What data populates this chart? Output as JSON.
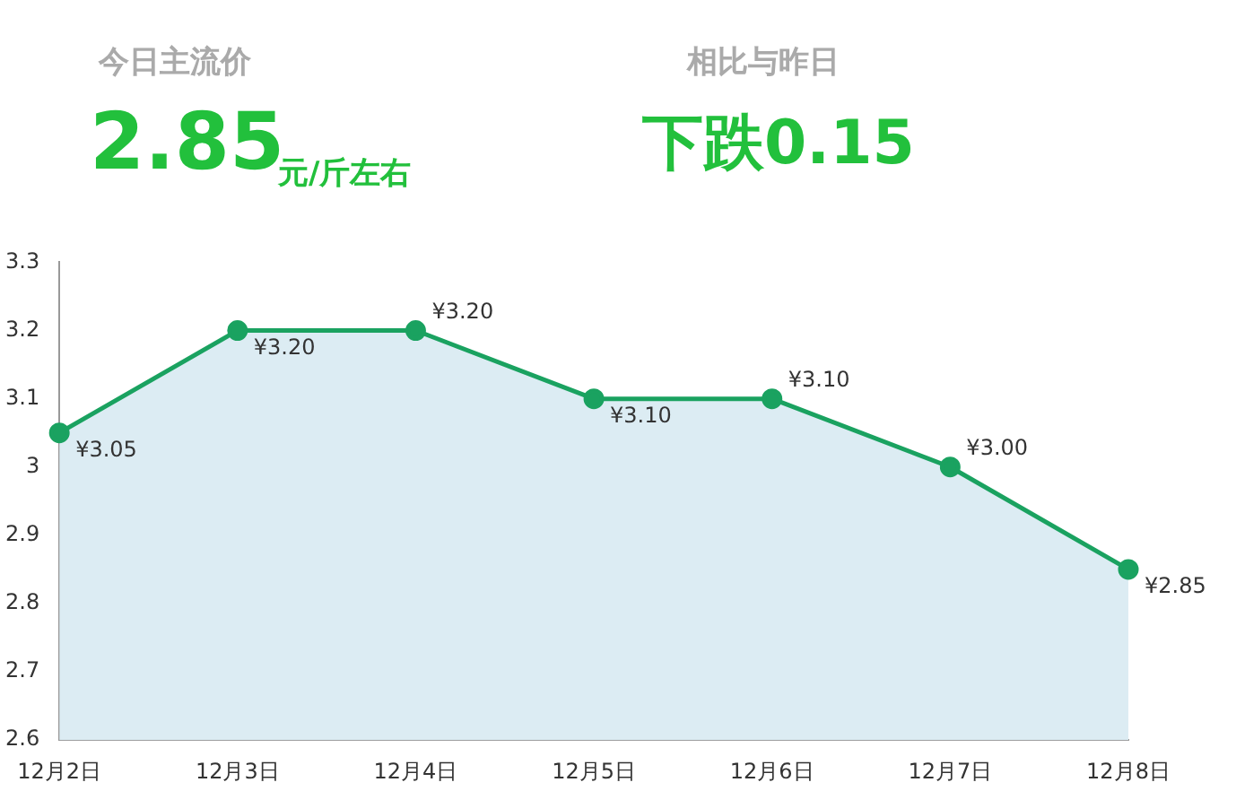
{
  "chart_data": {
    "type": "area",
    "annotations": [
      "今日主流价",
      "2.85",
      "元/斤左右",
      "相比与昨日",
      "下跌0.15"
    ],
    "categories": [
      "12月2日",
      "12月3日",
      "12月4日",
      "12月5日",
      "12月6日",
      "12月7日",
      "12月8日"
    ],
    "series": [
      {
        "color": "#1aa260",
        "values": [
          3.05,
          3.2,
          3.2,
          3.1,
          3.1,
          3.0,
          2.85
        ],
        "value_labels": [
          "¥3.05",
          "¥3.20",
          "¥3.20",
          "¥3.10",
          "¥3.10",
          "¥3.00",
          "¥2.85"
        ]
      }
    ],
    "ylim": [
      2.6,
      3.3
    ],
    "yticks": [
      2.6,
      2.7,
      2.8,
      2.9,
      3,
      3.1,
      3.2,
      3.3
    ],
    "marker": "circle",
    "grid": false,
    "legend": false
  }
}
